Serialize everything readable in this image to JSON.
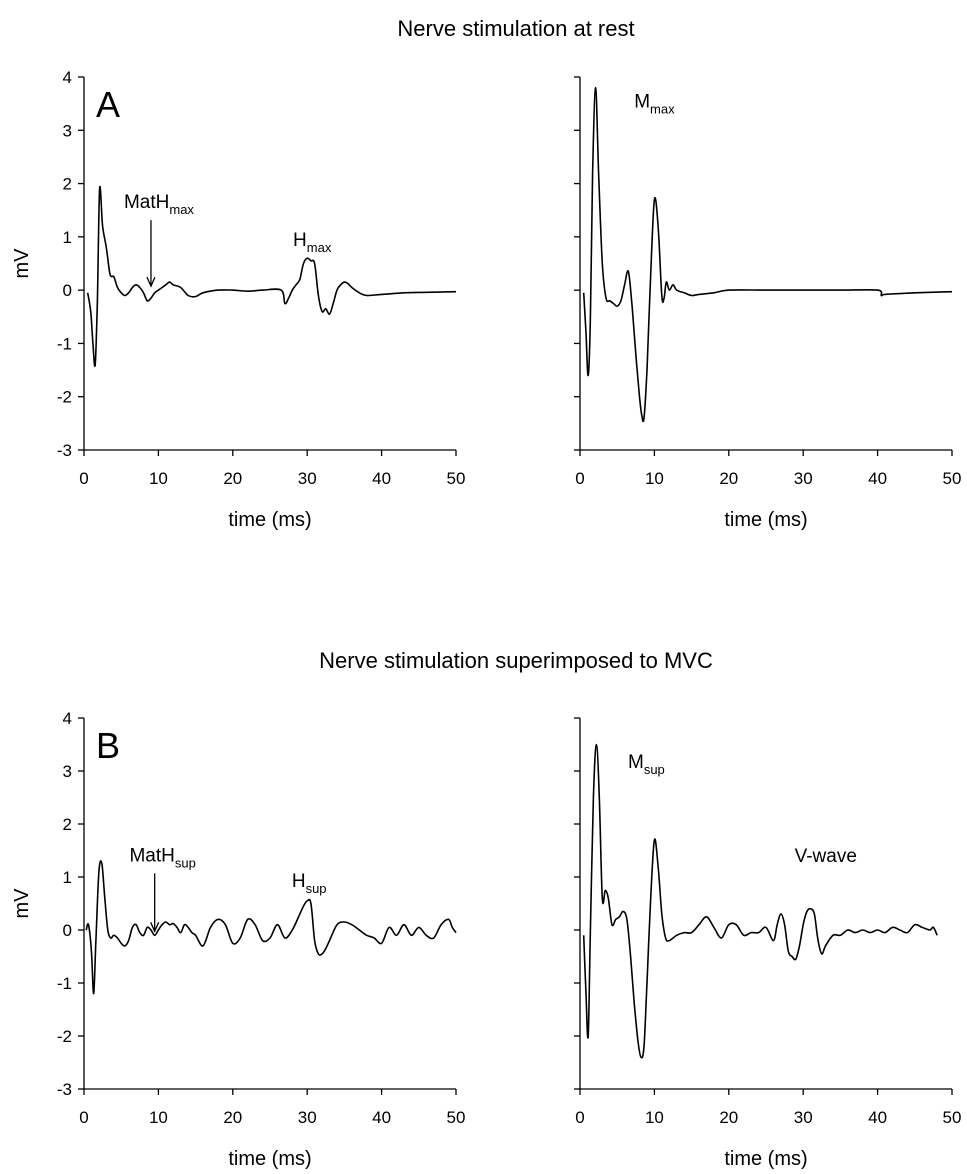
{
  "sections": [
    {
      "title": "Nerve stimulation at rest",
      "panel_letter": "A"
    },
    {
      "title": "Nerve stimulation superimposed to MVC",
      "panel_letter": "B"
    }
  ],
  "chart_data": [
    {
      "type": "line",
      "panel": "A-left",
      "xlabel": "time (ms)",
      "ylabel": "mV",
      "xlim": [
        0,
        50
      ],
      "ylim": [
        -3,
        4
      ],
      "xticks": [
        0,
        10,
        20,
        30,
        40,
        50
      ],
      "yticks": [
        -3,
        -2,
        -1,
        0,
        1,
        2,
        3,
        4
      ],
      "annotations": [
        {
          "text": "MatH",
          "sub": "max",
          "x": 9,
          "y": 0,
          "arrow": true
        },
        {
          "text": "H",
          "sub": "max",
          "x": 30,
          "y": 0.6,
          "arrow": false
        }
      ],
      "series": [
        {
          "x": [
            0.5,
            0.9,
            1.2,
            1.5,
            1.8,
            2.1,
            2.5,
            3,
            3.5,
            4,
            4.5,
            5,
            5.5,
            6,
            6.5,
            7,
            7.5,
            8,
            8.5,
            9,
            9.5,
            10,
            10.5,
            11,
            11.5,
            12,
            13,
            14,
            15,
            16,
            18,
            20,
            22,
            24,
            26.5,
            27,
            27.5,
            28,
            28.5,
            29,
            29.5,
            30,
            30.5,
            31,
            31.5,
            32,
            32.5,
            33,
            33.5,
            34,
            34.5,
            35,
            35.5,
            36,
            37,
            38,
            40,
            43,
            46,
            50
          ],
          "y": [
            -0.05,
            -0.4,
            -1.0,
            -1.4,
            -0.2,
            1.9,
            1.2,
            0.8,
            0.3,
            0.25,
            0.05,
            -0.05,
            -0.1,
            -0.05,
            0.05,
            0.1,
            0.05,
            -0.05,
            -0.2,
            -0.15,
            -0.05,
            0,
            0.05,
            0.1,
            0.15,
            0.1,
            0.05,
            -0.1,
            -0.12,
            -0.05,
            0,
            0,
            -0.02,
            0,
            0,
            -0.25,
            -0.15,
            0,
            0.1,
            0.2,
            0.5,
            0.6,
            0.55,
            0.5,
            -0.1,
            -0.4,
            -0.35,
            -0.45,
            -0.25,
            0,
            0.1,
            0.15,
            0.12,
            0.05,
            -0.05,
            -0.1,
            -0.08,
            -0.05,
            -0.04,
            -0.03
          ]
        }
      ]
    },
    {
      "type": "line",
      "panel": "A-right",
      "xlabel": "time (ms)",
      "ylabel": "",
      "xlim": [
        0,
        50
      ],
      "ylim": [
        -3,
        4
      ],
      "xticks": [
        0,
        10,
        20,
        30,
        40,
        50
      ],
      "yticks": [
        -3,
        -2,
        -1,
        0,
        1,
        2,
        3,
        4
      ],
      "annotations": [
        {
          "text": "M",
          "sub": "max",
          "x": 10,
          "y": 1.7,
          "arrow": false
        }
      ],
      "series": [
        {
          "x": [
            0.5,
            0.8,
            1.1,
            1.4,
            1.7,
            2.1,
            2.5,
            3,
            3.5,
            4,
            4.5,
            5,
            5.5,
            6,
            6.5,
            7,
            7.5,
            8,
            8.3,
            8.6,
            9,
            9.5,
            10,
            10.5,
            11,
            11.3,
            11.6,
            12,
            12.5,
            13,
            14,
            15,
            16,
            18,
            20,
            25,
            30,
            35,
            40,
            40.5,
            41,
            45,
            50
          ],
          "y": [
            -0.05,
            -0.8,
            -1.6,
            -0.5,
            2.2,
            3.8,
            2.2,
            0.5,
            -0.15,
            -0.2,
            -0.25,
            -0.3,
            -0.2,
            0.1,
            0.35,
            -0.3,
            -1.2,
            -2.0,
            -2.35,
            -2.4,
            -1.5,
            0.3,
            1.7,
            1.2,
            -0.1,
            -0.15,
            0.15,
            0.0,
            0.1,
            0.0,
            -0.05,
            -0.1,
            -0.08,
            -0.05,
            0,
            0,
            0,
            0,
            0,
            -0.1,
            -0.08,
            -0.05,
            -0.03
          ]
        }
      ]
    },
    {
      "type": "line",
      "panel": "B-left",
      "xlabel": "time (ms)",
      "ylabel": "mV",
      "xlim": [
        0,
        50
      ],
      "ylim": [
        -3,
        4
      ],
      "xticks": [
        0,
        10,
        20,
        30,
        40,
        50
      ],
      "yticks": [
        -3,
        -2,
        -1,
        0,
        1,
        2,
        3,
        4
      ],
      "annotations": [
        {
          "text": "MatH",
          "sub": "sup",
          "x": 9.5,
          "y": -0.1,
          "arrow": true
        },
        {
          "text": "H",
          "sub": "sup",
          "x": 30,
          "y": 0.55,
          "arrow": false
        }
      ],
      "series": [
        {
          "x": [
            0.3,
            0.6,
            1,
            1.3,
            1.6,
            2,
            2.4,
            2.8,
            3.2,
            3.6,
            4,
            4.5,
            5,
            5.5,
            6,
            6.5,
            7,
            7.5,
            8,
            8.5,
            9,
            9.5,
            10,
            10.5,
            11,
            11.5,
            12,
            12.5,
            13,
            13.5,
            14,
            14.5,
            15,
            16,
            17,
            18,
            19,
            20,
            21,
            22,
            23,
            24,
            25,
            26,
            27,
            28,
            29,
            29.5,
            30,
            30.5,
            31,
            31.5,
            32,
            32.5,
            33,
            34,
            35,
            36,
            37,
            38,
            39,
            40,
            41,
            42,
            43,
            44,
            45,
            46,
            47,
            48,
            49,
            49.5,
            50
          ],
          "y": [
            0,
            0.1,
            -0.4,
            -1.2,
            -0.2,
            1.1,
            1.25,
            0.6,
            0,
            -0.15,
            -0.1,
            -0.15,
            -0.25,
            -0.3,
            -0.2,
            0.05,
            0.1,
            -0.05,
            -0.1,
            0.05,
            0,
            -0.1,
            0,
            0.1,
            0.15,
            0.1,
            0.12,
            0.05,
            -0.05,
            0.1,
            0.05,
            -0.05,
            -0.1,
            -0.3,
            0.05,
            0.2,
            0.1,
            -0.25,
            -0.15,
            0.2,
            0.1,
            -0.2,
            -0.15,
            0.1,
            -0.15,
            0,
            0.3,
            0.45,
            0.55,
            0.5,
            -0.2,
            -0.45,
            -0.45,
            -0.35,
            -0.2,
            0.1,
            0.15,
            0.1,
            0,
            -0.1,
            -0.15,
            -0.25,
            0.05,
            -0.1,
            0.1,
            -0.1,
            0.05,
            -0.1,
            -0.15,
            0.1,
            0.2,
            0.05,
            -0.05
          ]
        }
      ]
    },
    {
      "type": "line",
      "panel": "B-right",
      "xlabel": "time (ms)",
      "ylabel": "",
      "xlim": [
        0,
        50
      ],
      "ylim": [
        -3,
        4
      ],
      "xticks": [
        0,
        10,
        20,
        30,
        40,
        50
      ],
      "yticks": [
        -3,
        -2,
        -1,
        0,
        1,
        2,
        3,
        4
      ],
      "annotations": [
        {
          "text": "M",
          "sub": "sup",
          "x": 10,
          "y": 1.7,
          "arrow": false
        },
        {
          "text": "V-wave",
          "sub": "",
          "x": 29,
          "y": 0.45,
          "arrow": false
        }
      ],
      "series": [
        {
          "x": [
            0.5,
            0.8,
            1.1,
            1.4,
            1.8,
            2.2,
            2.6,
            3,
            3.4,
            3.8,
            4.3,
            4.8,
            5.3,
            5.8,
            6.3,
            6.8,
            7.3,
            7.8,
            8.2,
            8.6,
            9,
            9.5,
            10,
            10.5,
            11,
            11.5,
            12,
            13,
            14,
            15,
            16,
            17,
            18,
            19,
            20,
            21,
            22,
            23,
            24,
            25,
            26,
            26.5,
            27,
            27.5,
            28,
            28.5,
            29,
            29.5,
            30,
            30.5,
            31,
            31.5,
            32,
            32.5,
            33,
            34,
            35,
            36,
            37,
            38,
            39,
            40,
            41,
            42,
            43,
            44,
            45,
            46,
            47,
            47.5,
            48
          ],
          "y": [
            -0.1,
            -1.2,
            -2.0,
            0.0,
            2.5,
            3.5,
            2.5,
            0.6,
            0.75,
            0.6,
            0.1,
            0.2,
            0.25,
            0.35,
            0.2,
            -0.5,
            -1.4,
            -2.1,
            -2.4,
            -2.2,
            -1.0,
            0.6,
            1.7,
            1.2,
            0.3,
            -0.15,
            -0.2,
            -0.1,
            -0.05,
            -0.05,
            0.1,
            0.25,
            0.05,
            -0.15,
            0.1,
            0.1,
            -0.1,
            -0.05,
            -0.05,
            0.05,
            -0.2,
            0.1,
            0.3,
            0.1,
            -0.4,
            -0.5,
            -0.55,
            -0.3,
            0.1,
            0.35,
            0.4,
            0.3,
            -0.2,
            -0.45,
            -0.3,
            -0.1,
            -0.1,
            0,
            -0.05,
            0,
            -0.05,
            0,
            -0.05,
            0.05,
            0,
            -0.05,
            0.1,
            0.05,
            0,
            0.05,
            -0.1
          ]
        }
      ]
    }
  ]
}
